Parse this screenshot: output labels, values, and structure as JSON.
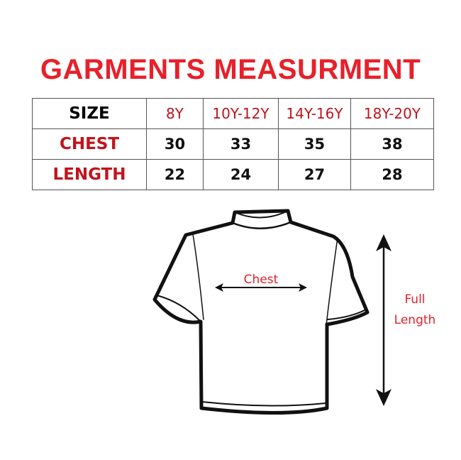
{
  "title": "GARMENTS MEASURMENT",
  "table": {
    "header_label": "SIZE",
    "sizes": [
      "8Y",
      "10Y-12Y",
      "14Y-16Y",
      "18Y-20Y"
    ],
    "rows": [
      {
        "label": "CHEST",
        "values": [
          "30",
          "33",
          "35",
          "38"
        ]
      },
      {
        "label": "LENGTH",
        "values": [
          "22",
          "24",
          "27",
          "28"
        ]
      }
    ]
  },
  "diagram": {
    "chest_label": "Chest",
    "length_label_line1": "Full",
    "length_label_line2": "Length"
  },
  "colors": {
    "accent_red": "#e8202a",
    "row_label_red": "#c0141c"
  }
}
